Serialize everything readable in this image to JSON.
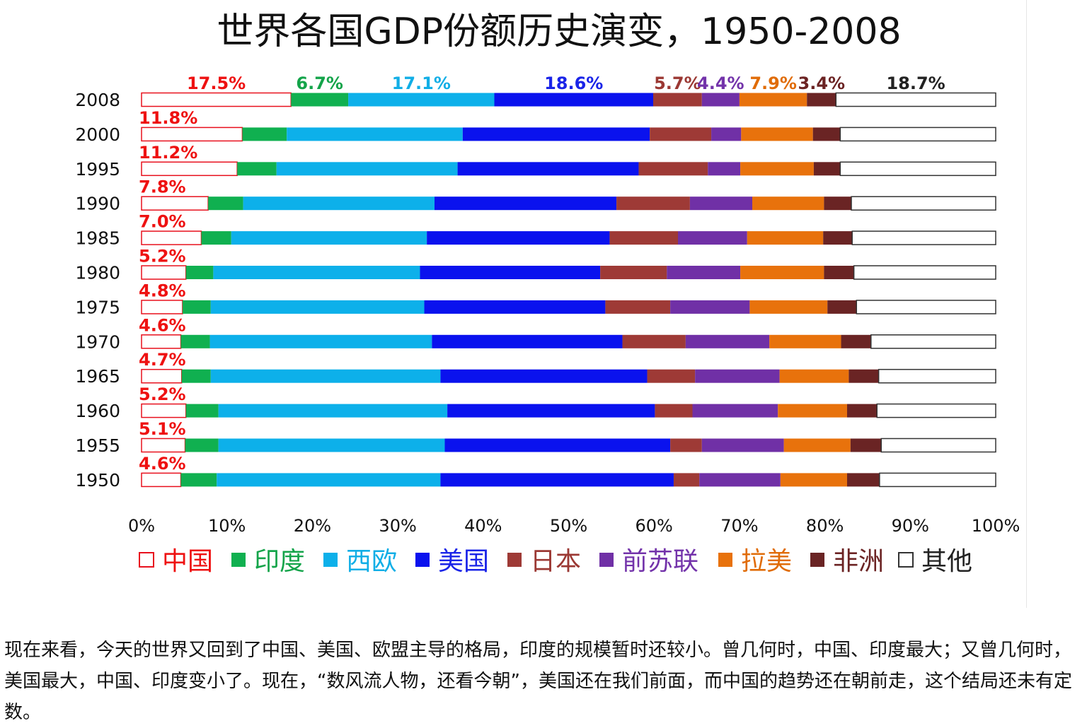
{
  "chart_data": {
    "type": "bar",
    "stacked": true,
    "orientation": "horizontal",
    "title": "世界各国GDP份额历史演变，1950-2008",
    "categories": [
      "2008",
      "2000",
      "1995",
      "1990",
      "1985",
      "1980",
      "1975",
      "1970",
      "1965",
      "1960",
      "1955",
      "1950"
    ],
    "xlim": [
      0,
      100
    ],
    "x_ticks": [
      "0%",
      "10%",
      "20%",
      "30%",
      "40%",
      "50%",
      "60%",
      "70%",
      "80%",
      "90%",
      "100%"
    ],
    "series": [
      {
        "name": "中国",
        "color": "#ffffff",
        "edge": "#e8101d",
        "label_color": "#ee1111",
        "values": [
          17.5,
          11.8,
          11.2,
          7.8,
          7.0,
          5.2,
          4.8,
          4.6,
          4.7,
          5.2,
          5.1,
          4.6
        ]
      },
      {
        "name": "印度",
        "color": "#10b050",
        "label_color": "#14a44a",
        "values": [
          6.7,
          5.2,
          4.6,
          4.1,
          3.5,
          3.2,
          3.3,
          3.4,
          3.4,
          3.8,
          3.9,
          4.2
        ]
      },
      {
        "name": "西欧",
        "color": "#0db0ea",
        "label_color": "#11aee6",
        "values": [
          17.1,
          20.6,
          21.2,
          22.4,
          22.9,
          24.2,
          25.0,
          26.0,
          26.9,
          26.8,
          26.5,
          26.2
        ]
      },
      {
        "name": "美国",
        "color": "#0a12ee",
        "label_color": "#1a24e8",
        "values": [
          18.6,
          21.9,
          21.2,
          21.3,
          21.4,
          21.1,
          21.2,
          22.3,
          24.2,
          24.3,
          26.4,
          27.3
        ]
      },
      {
        "name": "日本",
        "color": "#9e3a36",
        "label_color": "#9b3833",
        "values": [
          5.7,
          7.2,
          8.1,
          8.6,
          8.0,
          7.8,
          7.6,
          7.4,
          5.6,
          4.4,
          3.7,
          3.0
        ]
      },
      {
        "name": "前苏联",
        "color": "#7030a6",
        "label_color": "#7333aa",
        "values": [
          4.4,
          3.5,
          3.8,
          7.3,
          8.1,
          8.6,
          9.3,
          9.8,
          9.9,
          10.0,
          9.6,
          9.5
        ]
      },
      {
        "name": "拉美",
        "color": "#e8720c",
        "label_color": "#e06c08",
        "values": [
          7.9,
          8.4,
          8.6,
          8.4,
          8.9,
          9.8,
          9.1,
          8.4,
          8.1,
          8.1,
          7.8,
          7.8
        ]
      },
      {
        "name": "非洲",
        "color": "#6a2424",
        "label_color": "#6b2323",
        "values": [
          3.4,
          3.2,
          3.1,
          3.2,
          3.4,
          3.5,
          3.4,
          3.5,
          3.5,
          3.5,
          3.6,
          3.8
        ]
      },
      {
        "name": "其他",
        "color": "#ffffff",
        "edge": "#333333",
        "label_color": "#222222",
        "values": [
          18.7,
          18.2,
          18.2,
          16.9,
          16.8,
          16.6,
          16.3,
          14.6,
          13.7,
          13.9,
          13.4,
          13.6
        ]
      }
    ],
    "data_labels": [
      {
        "category": "2008",
        "series": "中国",
        "text": "17.5%"
      },
      {
        "category": "2008",
        "series": "印度",
        "text": "6.7%"
      },
      {
        "category": "2008",
        "series": "西欧",
        "text": "17.1%"
      },
      {
        "category": "2008",
        "series": "美国",
        "text": "18.6%"
      },
      {
        "category": "2008",
        "series": "日本",
        "text": "5.7%"
      },
      {
        "category": "2008",
        "series": "前苏联",
        "text": "4.4%"
      },
      {
        "category": "2008",
        "series": "拉美",
        "text": "7.9%"
      },
      {
        "category": "2008",
        "series": "非洲",
        "text": "3.4%"
      },
      {
        "category": "2008",
        "series": "其他",
        "text": "18.7%"
      },
      {
        "category": "2000",
        "series": "中国",
        "text": "11.8%"
      },
      {
        "category": "1995",
        "series": "中国",
        "text": "11.2%"
      },
      {
        "category": "1990",
        "series": "中国",
        "text": "7.8%"
      },
      {
        "category": "1985",
        "series": "中国",
        "text": "7.0%"
      },
      {
        "category": "1980",
        "series": "中国",
        "text": "5.2%"
      },
      {
        "category": "1975",
        "series": "中国",
        "text": "4.8%"
      },
      {
        "category": "1970",
        "series": "中国",
        "text": "4.6%"
      },
      {
        "category": "1965",
        "series": "中国",
        "text": "4.7%"
      },
      {
        "category": "1960",
        "series": "中国",
        "text": "5.2%"
      },
      {
        "category": "1955",
        "series": "中国",
        "text": "5.1%"
      },
      {
        "category": "1950",
        "series": "中国",
        "text": "4.6%"
      }
    ],
    "legend_placement": "bottom",
    "grid": false
  },
  "caption": "现在来看，今天的世界又回到了中国、美国、欧盟主导的格局，印度的规模暂时还较小。曾几何时，中国、印度最大；又曾几何时，美国最大，中国、印度变小了。现在，“数风流人物，还看今朝”，美国还在我们前面，而中国的趋势还在朝前走，这个结局还未有定数。"
}
